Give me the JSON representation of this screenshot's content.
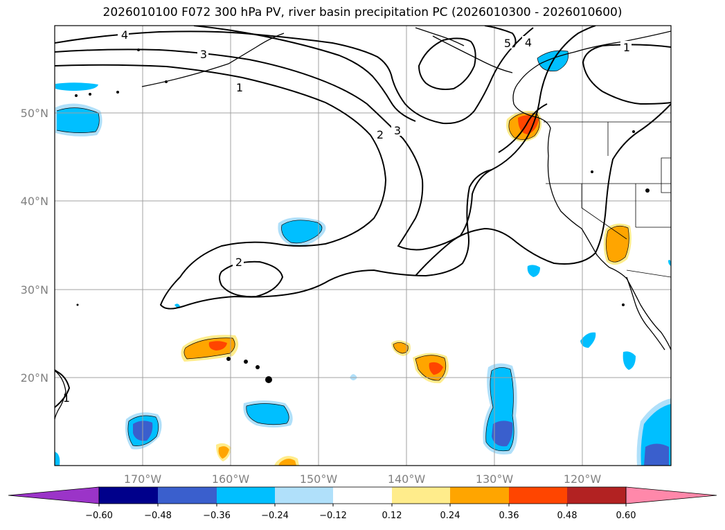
{
  "title": "2026010100 F072 300 hPa PV, river basin precipitation PC (2026010300 - 2026010600)",
  "map": {
    "lat_ticks": [
      "50°N",
      "40°N",
      "30°N",
      "20°N"
    ],
    "lon_ticks": [
      "170°W",
      "160°W",
      "150°W",
      "140°W",
      "130°W",
      "120°W"
    ],
    "contour_labels": [
      "4",
      "3",
      "1",
      "2",
      "3",
      "2",
      "5",
      "4",
      "1",
      "1"
    ]
  },
  "colorbar": {
    "colors": [
      "#9b34c8",
      "#00008b",
      "#3a5fcd",
      "#00bfff",
      "#b0e0fa",
      "#ffffff",
      "#ffec8b",
      "#ffa500",
      "#ff4500",
      "#b22222",
      "#ff88aa"
    ],
    "tick_labels": [
      "−0.60",
      "−0.48",
      "−0.36",
      "−0.24",
      "−0.12",
      "0.12",
      "0.24",
      "0.36",
      "0.48",
      "0.60"
    ]
  }
}
